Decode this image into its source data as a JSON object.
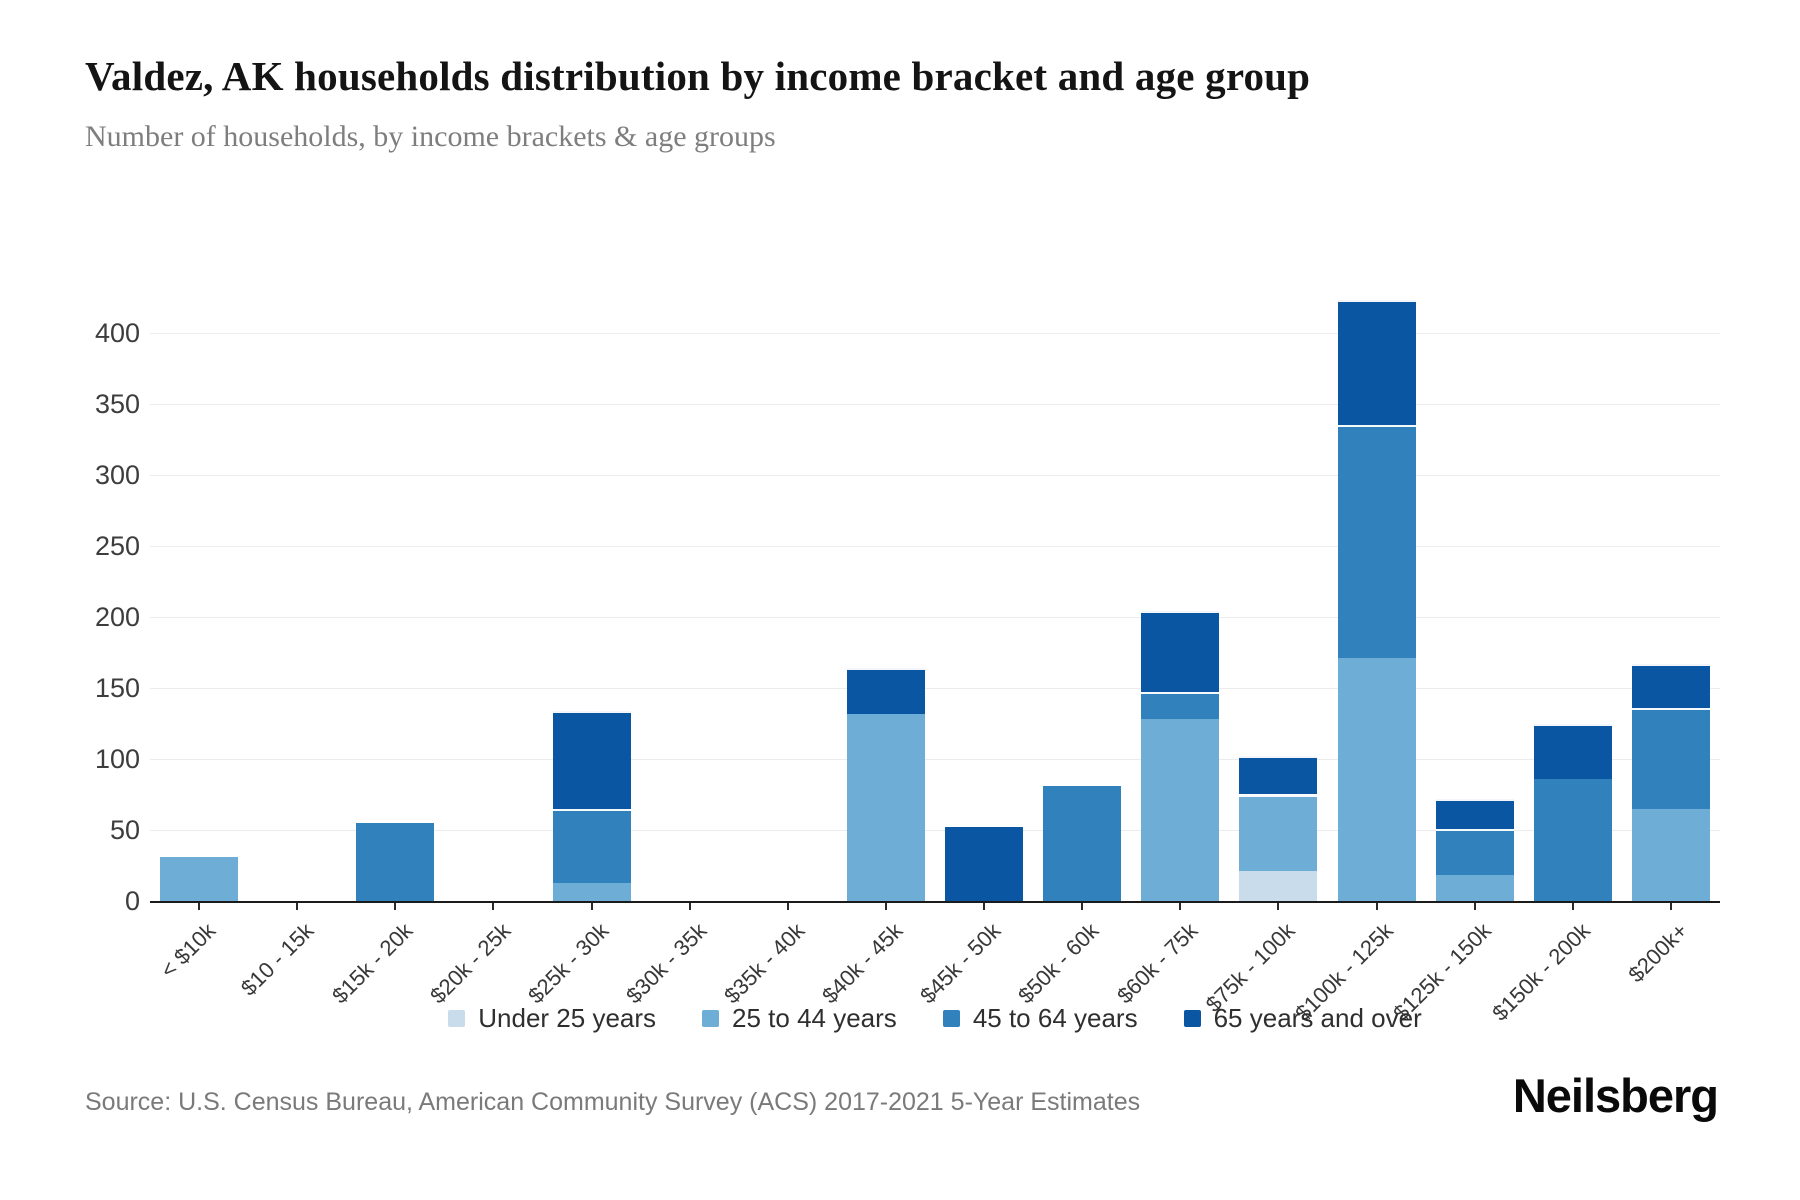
{
  "header": {
    "title": "Valdez, AK households distribution by income bracket and age group",
    "subtitle": "Number of households, by income brackets & age groups"
  },
  "footer": {
    "source": "Source: U.S. Census Bureau, American Community Survey (ACS) 2017-2021 5-Year Estimates",
    "brand": "Neilsberg"
  },
  "chart_data": {
    "type": "bar",
    "stacked": true,
    "grid": true,
    "legend_position": "bottom",
    "ylim": [
      0,
      400
    ],
    "ytick_step": 50,
    "ytick_labels": [
      "0",
      "50",
      "100",
      "150",
      "200",
      "250",
      "300",
      "350",
      "400"
    ],
    "categories": [
      "< $10k",
      "$10 - 15k",
      "$15k - 20k",
      "$20k - 25k",
      "$25k - 30k",
      "$30k - 35k",
      "$35k - 40k",
      "$40k - 45k",
      "$45k - 50k",
      "$50k - 60k",
      "$60k - 75k",
      "$75k - 100k",
      "$100k - 125k",
      "$125k - 150k",
      "$150k - 200k",
      "$200k+"
    ],
    "series": [
      {
        "name": "Under 25 years",
        "color": "#c8dcec",
        "values": [
          0,
          0,
          0,
          0,
          0,
          0,
          0,
          0,
          0,
          0,
          0,
          21,
          0,
          0,
          0,
          0
        ]
      },
      {
        "name": "25 to 44 years",
        "color": "#6eadd5",
        "values": [
          31,
          0,
          0,
          0,
          13,
          0,
          0,
          132,
          0,
          0,
          128,
          54,
          171,
          18,
          0,
          65
        ]
      },
      {
        "name": "45 to 64 years",
        "color": "#3181bd",
        "values": [
          0,
          0,
          55,
          0,
          52,
          0,
          0,
          0,
          0,
          81,
          19,
          0,
          164,
          33,
          86,
          71
        ]
      },
      {
        "name": "65 years and over",
        "color": "#0b56a2",
        "values": [
          0,
          0,
          0,
          0,
          69,
          0,
          0,
          32,
          52,
          0,
          57,
          27,
          88,
          21,
          39,
          31
        ]
      }
    ]
  }
}
